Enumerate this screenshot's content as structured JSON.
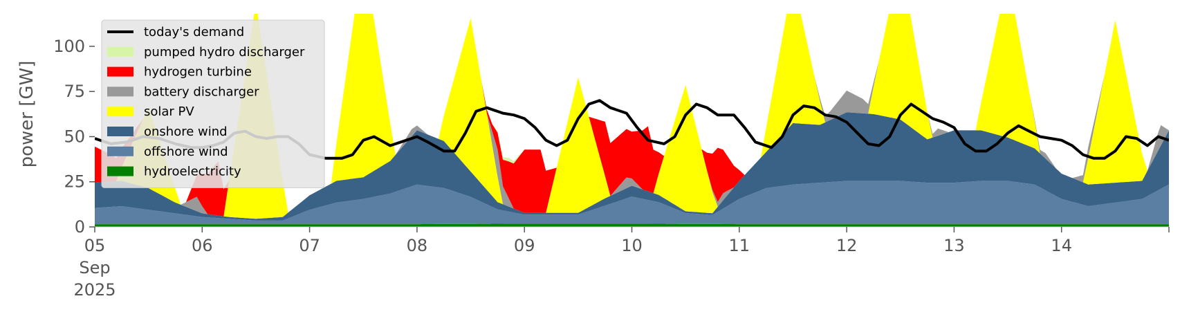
{
  "chart_data": {
    "type": "area",
    "title": "",
    "xlabel": "",
    "ylabel": "power [GW]",
    "xlim": [
      0,
      10
    ],
    "ylim": [
      0,
      118
    ],
    "grid": false,
    "legend_position": "top-left",
    "x_ticks": [
      {
        "x": 0,
        "lines": [
          "05",
          "Sep",
          "2025"
        ]
      },
      {
        "x": 1,
        "lines": [
          "06"
        ]
      },
      {
        "x": 2,
        "lines": [
          "07"
        ]
      },
      {
        "x": 3,
        "lines": [
          "08"
        ]
      },
      {
        "x": 4,
        "lines": [
          "09"
        ]
      },
      {
        "x": 5,
        "lines": [
          "10"
        ]
      },
      {
        "x": 6,
        "lines": [
          "11"
        ]
      },
      {
        "x": 7,
        "lines": [
          "12"
        ]
      },
      {
        "x": 8,
        "lines": [
          "13"
        ]
      },
      {
        "x": 9,
        "lines": [
          "14"
        ]
      }
    ],
    "y_ticks": [
      0,
      25,
      50,
      75,
      100
    ],
    "x_unit": "days since 05 Sep 2025",
    "series": [
      {
        "name": "hydroelectricity",
        "color": "#008000",
        "kind": "stack",
        "points": [
          [
            0,
            1.5
          ],
          [
            1,
            1.5
          ],
          [
            2,
            1.5
          ],
          [
            3,
            1.5
          ],
          [
            4,
            1.8
          ],
          [
            5,
            1.8
          ],
          [
            6,
            1.5
          ],
          [
            7,
            1.5
          ],
          [
            8,
            1.5
          ],
          [
            9,
            1.5
          ],
          [
            10,
            1.5
          ]
        ]
      },
      {
        "name": "offshore wind",
        "color": "#5b7fa3",
        "kind": "stack",
        "points": [
          [
            0,
            9
          ],
          [
            0.25,
            10
          ],
          [
            0.5,
            8
          ],
          [
            0.75,
            6
          ],
          [
            1,
            4
          ],
          [
            1.25,
            3
          ],
          [
            1.5,
            2
          ],
          [
            1.75,
            2
          ],
          [
            2,
            8
          ],
          [
            2.25,
            12
          ],
          [
            2.5,
            14
          ],
          [
            2.75,
            17
          ],
          [
            3,
            22
          ],
          [
            3.25,
            20
          ],
          [
            3.5,
            15
          ],
          [
            3.75,
            8
          ],
          [
            4,
            5
          ],
          [
            4.25,
            5
          ],
          [
            4.5,
            5
          ],
          [
            4.75,
            10
          ],
          [
            5,
            15
          ],
          [
            5.25,
            12
          ],
          [
            5.5,
            6
          ],
          [
            5.75,
            5
          ],
          [
            6,
            14
          ],
          [
            6.25,
            20
          ],
          [
            6.5,
            22
          ],
          [
            6.75,
            23
          ],
          [
            7,
            24
          ],
          [
            7.25,
            24
          ],
          [
            7.5,
            24
          ],
          [
            7.75,
            23
          ],
          [
            8,
            23
          ],
          [
            8.25,
            24
          ],
          [
            8.5,
            24
          ],
          [
            8.75,
            22
          ],
          [
            9,
            14
          ],
          [
            9.25,
            10
          ],
          [
            9.5,
            12
          ],
          [
            9.75,
            14
          ],
          [
            10,
            22
          ]
        ]
      },
      {
        "name": "onshore wind",
        "color": "#3a6186",
        "kind": "stack",
        "points": [
          [
            0,
            14
          ],
          [
            0.25,
            14
          ],
          [
            0.5,
            12
          ],
          [
            0.75,
            6
          ],
          [
            1,
            2
          ],
          [
            1.25,
            1
          ],
          [
            1.5,
            1
          ],
          [
            1.75,
            2
          ],
          [
            2,
            8
          ],
          [
            2.25,
            12
          ],
          [
            2.5,
            12
          ],
          [
            2.75,
            18
          ],
          [
            3,
            30
          ],
          [
            3.25,
            26
          ],
          [
            3.5,
            14
          ],
          [
            3.75,
            4
          ],
          [
            4,
            1
          ],
          [
            4.25,
            1
          ],
          [
            4.5,
            1
          ],
          [
            4.75,
            4
          ],
          [
            5,
            6
          ],
          [
            5.25,
            4
          ],
          [
            5.5,
            1
          ],
          [
            5.75,
            1
          ],
          [
            6,
            10
          ],
          [
            6.25,
            20
          ],
          [
            6.5,
            34
          ],
          [
            6.75,
            32
          ],
          [
            7,
            38
          ],
          [
            7.25,
            37
          ],
          [
            7.5,
            34
          ],
          [
            7.75,
            24
          ],
          [
            8,
            29
          ],
          [
            8.25,
            28
          ],
          [
            8.5,
            24
          ],
          [
            8.75,
            20
          ],
          [
            9,
            14
          ],
          [
            9.25,
            12
          ],
          [
            9.5,
            11
          ],
          [
            9.75,
            10
          ],
          [
            10,
            30
          ]
        ]
      },
      {
        "name": "solar PV",
        "color": "#ffff00",
        "kind": "stack",
        "points": [
          [
            0,
            0
          ],
          [
            0.2,
            0
          ],
          [
            0.5,
            45
          ],
          [
            0.8,
            0
          ],
          [
            1,
            0
          ],
          [
            1.2,
            0
          ],
          [
            1.5,
            120
          ],
          [
            1.8,
            0
          ],
          [
            2,
            0
          ],
          [
            2.2,
            0
          ],
          [
            2.5,
            125
          ],
          [
            2.8,
            0
          ],
          [
            3,
            0
          ],
          [
            3.2,
            0
          ],
          [
            3.5,
            85
          ],
          [
            3.8,
            0
          ],
          [
            4,
            0
          ],
          [
            4.2,
            0
          ],
          [
            4.5,
            75
          ],
          [
            4.8,
            0
          ],
          [
            5,
            0
          ],
          [
            5.2,
            0
          ],
          [
            5.5,
            70
          ],
          [
            5.8,
            0
          ],
          [
            6,
            0
          ],
          [
            6.2,
            0
          ],
          [
            6.5,
            80
          ],
          [
            6.8,
            0
          ],
          [
            7,
            0
          ],
          [
            7.2,
            0
          ],
          [
            7.5,
            90
          ],
          [
            7.8,
            0
          ],
          [
            8,
            0
          ],
          [
            8.2,
            0
          ],
          [
            8.5,
            90
          ],
          [
            8.8,
            0
          ],
          [
            9,
            0
          ],
          [
            9.2,
            0
          ],
          [
            9.5,
            90
          ],
          [
            9.8,
            0
          ],
          [
            10,
            0
          ]
        ]
      },
      {
        "name": "battery discharger",
        "color": "#999999",
        "kind": "stack",
        "points": [
          [
            0,
            0
          ],
          [
            0.8,
            0
          ],
          [
            0.95,
            8
          ],
          [
            1.05,
            0
          ],
          [
            2,
            0
          ],
          [
            2.8,
            0
          ],
          [
            2.95,
            4
          ],
          [
            3.1,
            0
          ],
          [
            3.65,
            0
          ],
          [
            3.75,
            15
          ],
          [
            3.9,
            0
          ],
          [
            4,
            0
          ],
          [
            4.8,
            0
          ],
          [
            4.95,
            6
          ],
          [
            5.1,
            0
          ],
          [
            5.7,
            0
          ],
          [
            5.85,
            4
          ],
          [
            5.95,
            0
          ],
          [
            6.7,
            0
          ],
          [
            6.85,
            5
          ],
          [
            7,
            12
          ],
          [
            7.15,
            8
          ],
          [
            7.3,
            0
          ],
          [
            7.75,
            0
          ],
          [
            7.85,
            4
          ],
          [
            7.95,
            0
          ],
          [
            8.7,
            0
          ],
          [
            8.85,
            3
          ],
          [
            8.95,
            0
          ],
          [
            9.1,
            0
          ],
          [
            9.25,
            6
          ],
          [
            9.4,
            0
          ],
          [
            9.8,
            0
          ],
          [
            9.92,
            12
          ],
          [
            10,
            0
          ]
        ]
      },
      {
        "name": "hydrogen turbine",
        "color": "#ff0000",
        "kind": "stack",
        "points": [
          [
            0,
            20
          ],
          [
            0.15,
            15
          ],
          [
            0.3,
            8
          ],
          [
            0.45,
            0
          ],
          [
            0.85,
            0
          ],
          [
            1,
            18
          ],
          [
            1.15,
            30
          ],
          [
            1.25,
            0
          ],
          [
            1.9,
            0
          ],
          [
            2.05,
            0
          ],
          [
            3.6,
            0
          ],
          [
            3.7,
            4
          ],
          [
            3.85,
            20
          ],
          [
            4,
            35
          ],
          [
            4.15,
            35
          ],
          [
            4.3,
            0
          ],
          [
            4.6,
            0
          ],
          [
            4.75,
            30
          ],
          [
            5,
            26
          ],
          [
            5.15,
            36
          ],
          [
            5.3,
            0
          ],
          [
            5.65,
            0
          ],
          [
            5.8,
            30
          ],
          [
            5.95,
            12
          ],
          [
            6.05,
            0
          ],
          [
            10,
            0
          ]
        ]
      },
      {
        "name": "pumped hydro discharger",
        "color": "#d7f5a6",
        "kind": "stack",
        "points": [
          [
            0,
            0
          ],
          [
            3.7,
            0
          ],
          [
            3.85,
            2
          ],
          [
            4,
            0
          ],
          [
            10,
            0
          ]
        ]
      },
      {
        "name": "today's demand",
        "color": "#000000",
        "kind": "line",
        "points": [
          [
            0,
            49
          ],
          [
            0.15,
            46
          ],
          [
            0.3,
            47
          ],
          [
            0.45,
            50
          ],
          [
            0.6,
            49
          ],
          [
            0.75,
            46
          ],
          [
            0.9,
            44
          ],
          [
            1,
            44
          ],
          [
            1.1,
            45
          ],
          [
            1.2,
            47
          ],
          [
            1.3,
            52
          ],
          [
            1.4,
            53
          ],
          [
            1.5,
            50
          ],
          [
            1.6,
            49
          ],
          [
            1.7,
            50
          ],
          [
            1.8,
            50
          ],
          [
            1.9,
            46
          ],
          [
            2,
            40
          ],
          [
            2.15,
            38
          ],
          [
            2.3,
            38
          ],
          [
            2.4,
            40
          ],
          [
            2.5,
            48
          ],
          [
            2.6,
            50
          ],
          [
            2.75,
            45
          ],
          [
            2.9,
            48
          ],
          [
            3,
            50
          ],
          [
            3.1,
            47
          ],
          [
            3.25,
            42
          ],
          [
            3.35,
            42
          ],
          [
            3.45,
            52
          ],
          [
            3.55,
            64
          ],
          [
            3.65,
            66
          ],
          [
            3.8,
            63
          ],
          [
            3.9,
            62
          ],
          [
            4,
            60
          ],
          [
            4.1,
            55
          ],
          [
            4.2,
            48
          ],
          [
            4.3,
            45
          ],
          [
            4.4,
            48
          ],
          [
            4.5,
            60
          ],
          [
            4.6,
            68
          ],
          [
            4.7,
            70
          ],
          [
            4.8,
            66
          ],
          [
            4.95,
            63
          ],
          [
            5.05,
            55
          ],
          [
            5.15,
            48
          ],
          [
            5.3,
            46
          ],
          [
            5.4,
            50
          ],
          [
            5.5,
            62
          ],
          [
            5.6,
            68
          ],
          [
            5.7,
            66
          ],
          [
            5.8,
            62
          ],
          [
            5.95,
            62
          ],
          [
            6.05,
            55
          ],
          [
            6.15,
            47
          ],
          [
            6.3,
            44
          ],
          [
            6.4,
            50
          ],
          [
            6.5,
            62
          ],
          [
            6.6,
            67
          ],
          [
            6.7,
            66
          ],
          [
            6.8,
            62
          ],
          [
            6.9,
            61
          ],
          [
            7,
            58
          ],
          [
            7.1,
            52
          ],
          [
            7.2,
            46
          ],
          [
            7.3,
            45
          ],
          [
            7.4,
            50
          ],
          [
            7.5,
            62
          ],
          [
            7.6,
            68
          ],
          [
            7.7,
            64
          ],
          [
            7.8,
            60
          ],
          [
            7.9,
            58
          ],
          [
            8,
            55
          ],
          [
            8.1,
            46
          ],
          [
            8.2,
            42
          ],
          [
            8.3,
            42
          ],
          [
            8.4,
            46
          ],
          [
            8.5,
            52
          ],
          [
            8.6,
            56
          ],
          [
            8.7,
            53
          ],
          [
            8.8,
            50
          ],
          [
            8.9,
            49
          ],
          [
            9,
            48
          ],
          [
            9.1,
            45
          ],
          [
            9.2,
            40
          ],
          [
            9.3,
            38
          ],
          [
            9.4,
            38
          ],
          [
            9.5,
            42
          ],
          [
            9.6,
            50
          ],
          [
            9.7,
            49
          ],
          [
            9.8,
            45
          ],
          [
            9.9,
            50
          ],
          [
            10,
            48
          ]
        ]
      }
    ],
    "legend_order": [
      "today's demand",
      "pumped hydro discharger",
      "hydrogen turbine",
      "battery discharger",
      "solar PV",
      "onshore wind",
      "offshore wind",
      "hydroelectricity"
    ]
  }
}
